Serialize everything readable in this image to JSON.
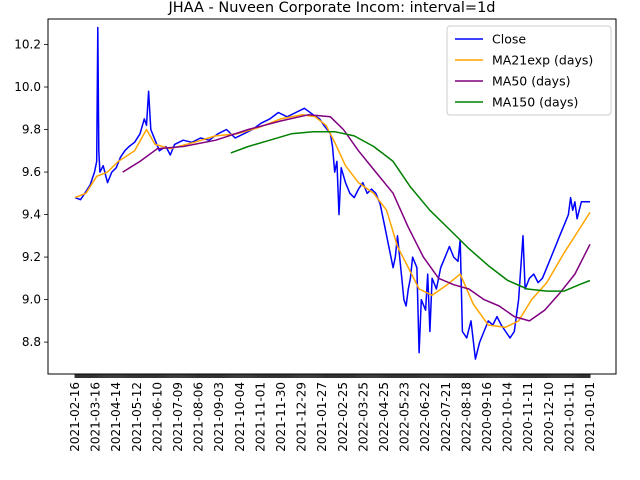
{
  "chart_data": {
    "type": "line",
    "title": "JHAA - Nuveen Corporate Incom: interval=1d",
    "xlabel": "",
    "ylabel": "",
    "ylim": [
      8.65,
      10.32
    ],
    "grid": false,
    "legend_position": "top-right",
    "yticks": [
      8.8,
      9.0,
      9.2,
      9.4,
      9.6,
      9.8,
      10.0,
      10.2
    ],
    "xtick_labels": [
      "2021-02-16",
      "2021-03-16",
      "2021-04-14",
      "2021-05-12",
      "2021-06-10",
      "2021-07-09",
      "2021-08-06",
      "2021-09-03",
      "2021-10-04",
      "2021-11-01",
      "2021-11-30",
      "2021-12-29",
      "2021-01-27",
      "2022-02-25",
      "2022-03-25",
      "2022-04-25",
      "2022-05-23",
      "2022-06-22",
      "2022-07-21",
      "2022-08-18",
      "2020-09-16",
      "2020-10-14",
      "2020-11-11",
      "2020-12-10",
      "2021-01-11",
      "2021-01-01"
    ],
    "n_points": 520,
    "series": [
      {
        "name": "Close",
        "color": "#0000ff",
        "points": [
          [
            0,
            9.48
          ],
          [
            5,
            9.47
          ],
          [
            9,
            9.5
          ],
          [
            14,
            9.54
          ],
          [
            18,
            9.6
          ],
          [
            20,
            9.65
          ],
          [
            21,
            10.28
          ],
          [
            22,
            9.7
          ],
          [
            23,
            9.6
          ],
          [
            26,
            9.63
          ],
          [
            30,
            9.55
          ],
          [
            34,
            9.6
          ],
          [
            38,
            9.62
          ],
          [
            42,
            9.67
          ],
          [
            46,
            9.7
          ],
          [
            50,
            9.72
          ],
          [
            55,
            9.74
          ],
          [
            60,
            9.78
          ],
          [
            64,
            9.85
          ],
          [
            66,
            9.82
          ],
          [
            68,
            9.98
          ],
          [
            70,
            9.8
          ],
          [
            74,
            9.75
          ],
          [
            78,
            9.7
          ],
          [
            84,
            9.72
          ],
          [
            88,
            9.68
          ],
          [
            92,
            9.73
          ],
          [
            100,
            9.75
          ],
          [
            108,
            9.74
          ],
          [
            116,
            9.76
          ],
          [
            124,
            9.75
          ],
          [
            132,
            9.78
          ],
          [
            140,
            9.8
          ],
          [
            148,
            9.76
          ],
          [
            156,
            9.78
          ],
          [
            164,
            9.8
          ],
          [
            172,
            9.83
          ],
          [
            180,
            9.85
          ],
          [
            188,
            9.88
          ],
          [
            196,
            9.86
          ],
          [
            204,
            9.88
          ],
          [
            212,
            9.9
          ],
          [
            220,
            9.87
          ],
          [
            226,
            9.85
          ],
          [
            230,
            9.82
          ],
          [
            236,
            9.78
          ],
          [
            238,
            9.72
          ],
          [
            240,
            9.6
          ],
          [
            242,
            9.65
          ],
          [
            244,
            9.4
          ],
          [
            246,
            9.62
          ],
          [
            250,
            9.55
          ],
          [
            254,
            9.5
          ],
          [
            258,
            9.48
          ],
          [
            262,
            9.52
          ],
          [
            266,
            9.55
          ],
          [
            270,
            9.5
          ],
          [
            274,
            9.52
          ],
          [
            278,
            9.5
          ],
          [
            282,
            9.45
          ],
          [
            286,
            9.35
          ],
          [
            290,
            9.25
          ],
          [
            294,
            9.15
          ],
          [
            296,
            9.2
          ],
          [
            298,
            9.3
          ],
          [
            302,
            9.1
          ],
          [
            304,
            9.0
          ],
          [
            306,
            8.97
          ],
          [
            308,
            9.05
          ],
          [
            310,
            9.1
          ],
          [
            312,
            9.2
          ],
          [
            316,
            9.15
          ],
          [
            318,
            8.75
          ],
          [
            320,
            9.0
          ],
          [
            324,
            8.95
          ],
          [
            326,
            9.12
          ],
          [
            328,
            8.85
          ],
          [
            330,
            9.1
          ],
          [
            334,
            9.05
          ],
          [
            338,
            9.15
          ],
          [
            342,
            9.2
          ],
          [
            346,
            9.25
          ],
          [
            350,
            9.2
          ],
          [
            354,
            9.18
          ],
          [
            356,
            9.28
          ],
          [
            358,
            8.85
          ],
          [
            362,
            8.82
          ],
          [
            366,
            8.9
          ],
          [
            370,
            8.72
          ],
          [
            374,
            8.8
          ],
          [
            378,
            8.85
          ],
          [
            382,
            8.9
          ],
          [
            386,
            8.88
          ],
          [
            390,
            8.92
          ],
          [
            394,
            8.88
          ],
          [
            398,
            8.85
          ],
          [
            402,
            8.82
          ],
          [
            406,
            8.85
          ],
          [
            410,
            9.0
          ],
          [
            412,
            9.15
          ],
          [
            414,
            9.3
          ],
          [
            416,
            9.05
          ],
          [
            420,
            9.1
          ],
          [
            424,
            9.12
          ],
          [
            428,
            9.08
          ],
          [
            432,
            9.1
          ],
          [
            436,
            9.15
          ],
          [
            440,
            9.2
          ],
          [
            444,
            9.25
          ],
          [
            448,
            9.3
          ],
          [
            452,
            9.35
          ],
          [
            456,
            9.4
          ],
          [
            458,
            9.48
          ],
          [
            460,
            9.42
          ],
          [
            462,
            9.46
          ],
          [
            464,
            9.38
          ],
          [
            466,
            9.42
          ],
          [
            468,
            9.46
          ],
          [
            472,
            9.46
          ],
          [
            476,
            9.46
          ]
        ]
      },
      {
        "name": "MA21exp (days)",
        "color": "#ffa500",
        "points": [
          [
            0,
            9.48
          ],
          [
            10,
            9.5
          ],
          [
            20,
            9.58
          ],
          [
            30,
            9.6
          ],
          [
            40,
            9.65
          ],
          [
            55,
            9.7
          ],
          [
            66,
            9.8
          ],
          [
            74,
            9.73
          ],
          [
            88,
            9.71
          ],
          [
            110,
            9.74
          ],
          [
            130,
            9.77
          ],
          [
            150,
            9.78
          ],
          [
            170,
            9.81
          ],
          [
            190,
            9.85
          ],
          [
            210,
            9.87
          ],
          [
            222,
            9.86
          ],
          [
            232,
            9.82
          ],
          [
            240,
            9.74
          ],
          [
            250,
            9.63
          ],
          [
            262,
            9.55
          ],
          [
            276,
            9.5
          ],
          [
            288,
            9.42
          ],
          [
            298,
            9.25
          ],
          [
            308,
            9.15
          ],
          [
            318,
            9.05
          ],
          [
            330,
            9.02
          ],
          [
            344,
            9.07
          ],
          [
            356,
            9.12
          ],
          [
            368,
            8.98
          ],
          [
            382,
            8.88
          ],
          [
            398,
            8.87
          ],
          [
            410,
            8.9
          ],
          [
            422,
            9.0
          ],
          [
            436,
            9.08
          ],
          [
            452,
            9.22
          ],
          [
            466,
            9.33
          ],
          [
            476,
            9.41
          ]
        ]
      },
      {
        "name": "MA50 (days)",
        "color": "#800080",
        "points": [
          [
            44,
            9.6
          ],
          [
            60,
            9.65
          ],
          [
            76,
            9.71
          ],
          [
            100,
            9.72
          ],
          [
            130,
            9.75
          ],
          [
            160,
            9.8
          ],
          [
            190,
            9.84
          ],
          [
            216,
            9.87
          ],
          [
            236,
            9.86
          ],
          [
            248,
            9.8
          ],
          [
            262,
            9.7
          ],
          [
            278,
            9.6
          ],
          [
            294,
            9.5
          ],
          [
            308,
            9.34
          ],
          [
            322,
            9.2
          ],
          [
            336,
            9.1
          ],
          [
            350,
            9.07
          ],
          [
            364,
            9.05
          ],
          [
            378,
            9.0
          ],
          [
            392,
            8.97
          ],
          [
            406,
            8.92
          ],
          [
            420,
            8.9
          ],
          [
            434,
            8.95
          ],
          [
            448,
            9.03
          ],
          [
            462,
            9.12
          ],
          [
            476,
            9.26
          ]
        ]
      },
      {
        "name": "MA150 (days)",
        "color": "#008000",
        "points": [
          [
            144,
            9.69
          ],
          [
            160,
            9.72
          ],
          [
            180,
            9.75
          ],
          [
            200,
            9.78
          ],
          [
            220,
            9.79
          ],
          [
            240,
            9.79
          ],
          [
            258,
            9.77
          ],
          [
            276,
            9.72
          ],
          [
            294,
            9.65
          ],
          [
            310,
            9.53
          ],
          [
            328,
            9.42
          ],
          [
            346,
            9.33
          ],
          [
            364,
            9.24
          ],
          [
            382,
            9.16
          ],
          [
            400,
            9.09
          ],
          [
            418,
            9.05
          ],
          [
            436,
            9.04
          ],
          [
            452,
            9.04
          ],
          [
            466,
            9.07
          ],
          [
            476,
            9.09
          ]
        ]
      }
    ]
  }
}
